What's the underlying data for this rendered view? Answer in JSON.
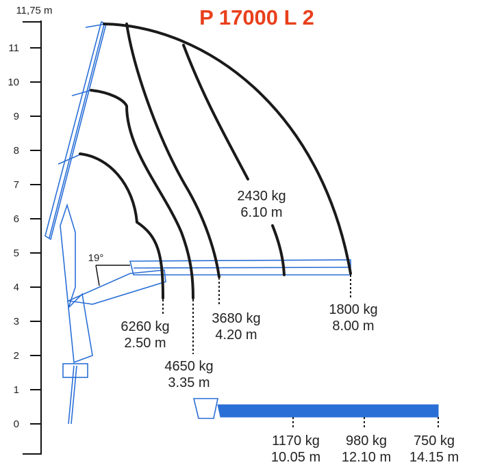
{
  "title": "P 17000 L 2",
  "axis": {
    "top_label": "11,75 m",
    "ticks": [
      "11",
      "10",
      "9",
      "8",
      "7",
      "6",
      "5",
      "4",
      "3",
      "2",
      "1",
      "0"
    ]
  },
  "angle_label": "19°",
  "loads": [
    {
      "weight": "2430 kg",
      "reach": "6.10 m"
    },
    {
      "weight": "6260 kg",
      "reach": "2.50 m"
    },
    {
      "weight": "4650 kg",
      "reach": "3.35 m"
    },
    {
      "weight": "3680 kg",
      "reach": "4.20 m"
    },
    {
      "weight": "1800 kg",
      "reach": "8.00 m"
    },
    {
      "weight": "1170 kg",
      "reach": "10.05 m"
    },
    {
      "weight": "980 kg",
      "reach": "12.10 m"
    },
    {
      "weight": "750 kg",
      "reach": "14.15 m"
    }
  ]
}
